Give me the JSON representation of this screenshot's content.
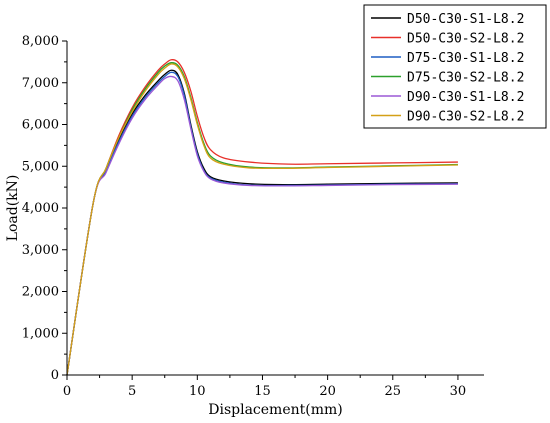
{
  "chart_data": {
    "type": "line",
    "title": "",
    "xlabel": "Displacement(mm)",
    "ylabel": "Load(kN)",
    "xlim": [
      0,
      32
    ],
    "ylim": [
      0,
      8000
    ],
    "x_ticks": [
      0,
      5,
      10,
      15,
      20,
      25,
      30
    ],
    "x_tick_labels": [
      "0",
      "5",
      "10",
      "15",
      "20",
      "25",
      "30"
    ],
    "y_ticks": [
      0,
      1000,
      2000,
      3000,
      4000,
      5000,
      6000,
      7000,
      8000
    ],
    "y_tick_labels": [
      "0",
      "1,000",
      "2,000",
      "3,000",
      "4,000",
      "5,000",
      "6,000",
      "7,000",
      "8,000"
    ],
    "grid": false,
    "legend_position": "top-right",
    "series": [
      {
        "name": "D50-C30-S1-L8.2",
        "color": "#000000",
        "x": [
          0,
          2,
          3,
          4,
          5,
          6,
          7,
          7.5,
          8,
          8.5,
          9,
          9.5,
          10,
          10.5,
          11,
          12,
          14,
          17,
          20,
          25,
          30
        ],
        "y": [
          0,
          4100,
          4900,
          5650,
          6250,
          6700,
          7050,
          7200,
          7300,
          7200,
          6750,
          6000,
          5350,
          4950,
          4750,
          4650,
          4580,
          4560,
          4570,
          4590,
          4600
        ]
      },
      {
        "name": "D50-C30-S2-L8.2",
        "color": "#e8302a",
        "x": [
          0,
          2,
          3,
          4,
          5,
          6,
          7,
          7.5,
          8,
          8.5,
          9,
          9.5,
          10,
          10.5,
          11,
          12,
          14,
          17,
          20,
          25,
          30
        ],
        "y": [
          0,
          4100,
          4950,
          5750,
          6400,
          6900,
          7300,
          7450,
          7550,
          7500,
          7250,
          6800,
          6200,
          5700,
          5400,
          5200,
          5100,
          5050,
          5060,
          5080,
          5100
        ]
      },
      {
        "name": "D75-C30-S1-L8.2",
        "color": "#1f5fc4",
        "x": [
          0,
          2,
          3,
          4,
          5,
          6,
          7,
          7.5,
          8,
          8.5,
          9,
          9.5,
          10,
          10.5,
          11,
          12,
          14,
          17,
          20,
          25,
          30
        ],
        "y": [
          0,
          4100,
          4900,
          5600,
          6200,
          6650,
          7000,
          7150,
          7250,
          7150,
          6700,
          5950,
          5300,
          4900,
          4720,
          4620,
          4550,
          4540,
          4550,
          4570,
          4580
        ]
      },
      {
        "name": "D75-C30-S2-L8.2",
        "color": "#2ca02c",
        "x": [
          0,
          2,
          3,
          4,
          5,
          6,
          7,
          7.5,
          8,
          8.5,
          9,
          9.5,
          10,
          10.5,
          11,
          12,
          14,
          17,
          20,
          25,
          30
        ],
        "y": [
          0,
          4100,
          4950,
          5700,
          6350,
          6850,
          7250,
          7400,
          7480,
          7420,
          7150,
          6650,
          6050,
          5550,
          5250,
          5080,
          4980,
          4960,
          4980,
          5010,
          5040
        ]
      },
      {
        "name": "D90-C30-S1-L8.2",
        "color": "#9b59d6",
        "x": [
          0,
          2,
          3,
          4,
          5,
          6,
          7,
          7.5,
          8,
          8.5,
          9,
          9.5,
          10,
          10.5,
          11,
          12,
          14,
          17,
          20,
          25,
          30
        ],
        "y": [
          0,
          4100,
          4850,
          5550,
          6150,
          6600,
          6950,
          7100,
          7150,
          7050,
          6600,
          5900,
          5250,
          4880,
          4700,
          4600,
          4540,
          4530,
          4540,
          4560,
          4570
        ]
      },
      {
        "name": "D90-C30-S2-L8.2",
        "color": "#d4a017",
        "x": [
          0,
          2,
          3,
          4,
          5,
          6,
          7,
          7.5,
          8,
          8.5,
          9,
          9.5,
          10,
          10.5,
          11,
          12,
          14,
          17,
          20,
          25,
          30
        ],
        "y": [
          0,
          4100,
          4950,
          5700,
          6300,
          6800,
          7200,
          7350,
          7450,
          7380,
          7100,
          6600,
          6000,
          5500,
          5200,
          5050,
          4960,
          4950,
          4970,
          5000,
          5030
        ]
      }
    ]
  }
}
